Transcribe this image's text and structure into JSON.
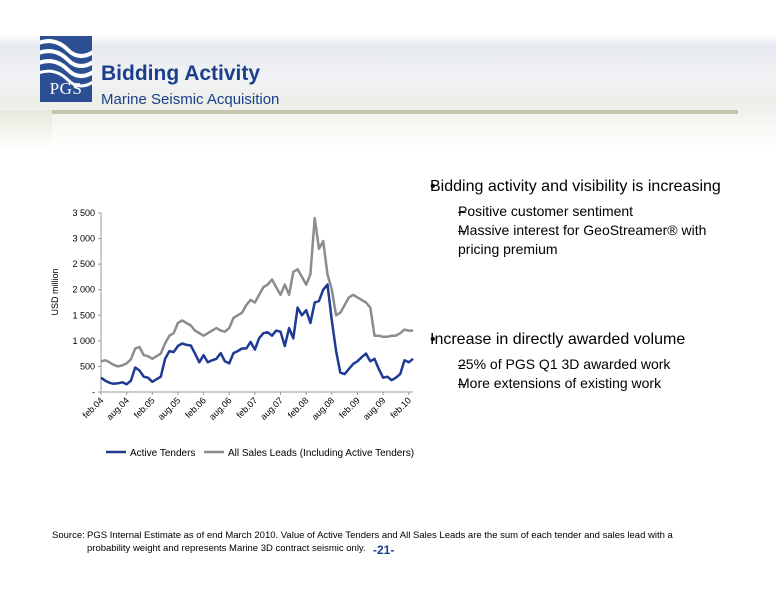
{
  "header": {
    "title": "Bidding Activity",
    "subtitle": "Marine Seismic Acquisition",
    "logo_text": "PGS",
    "brand_color": "#1b3f8b"
  },
  "chart_data": {
    "type": "line",
    "ylabel": "USD million",
    "xlabel": "",
    "ylim": [
      0,
      3500
    ],
    "yticks": [
      0,
      500,
      1000,
      1500,
      2000,
      2500,
      3000,
      3500
    ],
    "ytick_labels": [
      "-",
      "500",
      "1 000",
      "1 500",
      "2 000",
      "2 500",
      "3 000",
      "3 500"
    ],
    "xtick_labels": [
      "feb.04",
      "aug.04",
      "feb.05",
      "aug.05",
      "feb.06",
      "aug.06",
      "feb.07",
      "aug.07",
      "feb.08",
      "aug.08",
      "feb.09",
      "aug.09",
      "feb.10"
    ],
    "grid": false,
    "legend_position": "bottom",
    "series": [
      {
        "name": "Active Tenders",
        "color": "#1f3a93",
        "values": [
          280,
          220,
          180,
          160,
          170,
          190,
          150,
          220,
          480,
          420,
          300,
          280,
          200,
          250,
          300,
          650,
          800,
          780,
          900,
          950,
          920,
          910,
          750,
          580,
          720,
          580,
          620,
          650,
          760,
          600,
          560,
          760,
          800,
          850,
          850,
          980,
          830,
          1050,
          1150,
          1170,
          1100,
          1200,
          1180,
          900,
          1250,
          1050,
          1650,
          1500,
          1600,
          1350,
          1750,
          1780,
          2000,
          2100,
          1400,
          800,
          380,
          350,
          450,
          550,
          600,
          680,
          750,
          600,
          650,
          450,
          280,
          300,
          230,
          280,
          350,
          620,
          580,
          650
        ]
      },
      {
        "name": "All Sales Leads (Including Active Tenders)",
        "color": "#8c8c8c",
        "values": [
          600,
          620,
          580,
          530,
          500,
          520,
          560,
          640,
          850,
          880,
          720,
          700,
          650,
          700,
          750,
          950,
          1100,
          1150,
          1350,
          1400,
          1350,
          1300,
          1200,
          1150,
          1100,
          1150,
          1200,
          1250,
          1200,
          1180,
          1250,
          1450,
          1500,
          1550,
          1700,
          1800,
          1750,
          1900,
          2050,
          2100,
          2200,
          2050,
          1900,
          2100,
          1900,
          2350,
          2400,
          2250,
          2100,
          2300,
          3400,
          2800,
          2950,
          2300,
          2000,
          1500,
          1550,
          1700,
          1850,
          1900,
          1850,
          1800,
          1750,
          1650,
          1100,
          1100,
          1080,
          1080,
          1100,
          1100,
          1150,
          1220,
          1200,
          1200
        ]
      }
    ]
  },
  "bullets": [
    {
      "text": "Bidding activity and visibility is increasing",
      "subs": [
        "Positive customer sentiment",
        "Massive interest for GeoStreamer® with pricing premium"
      ]
    },
    {
      "text": "Increase in directly awarded volume",
      "subs": [
        "25% of PGS Q1 3D awarded work",
        "More extensions of existing work"
      ]
    }
  ],
  "footer": {
    "source_label": "Source:",
    "source_text": "PGS Internal Estimate as of end March 2010. Value of Active Tenders and All Sales Leads are the sum of each tender and sales lead with a probability weight and represents Marine 3D contract seismic only.",
    "page_number": "-21-"
  }
}
